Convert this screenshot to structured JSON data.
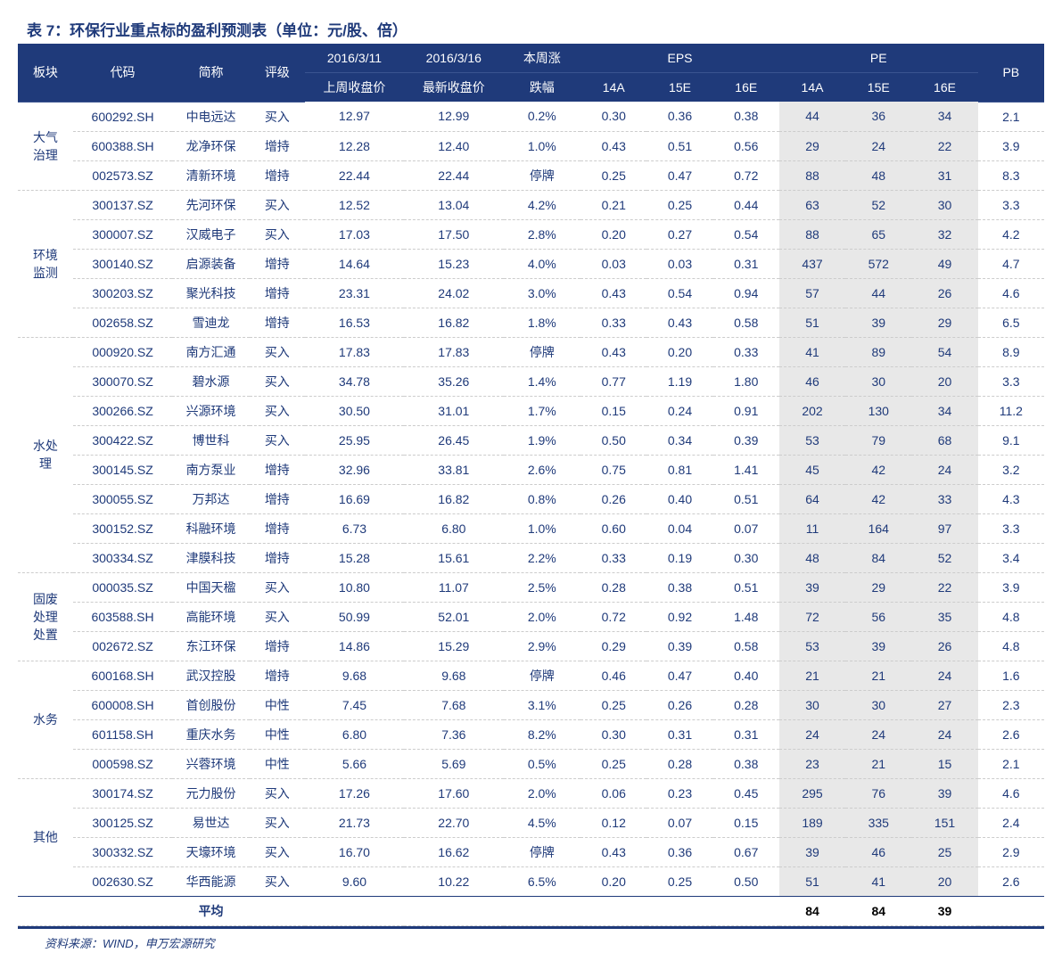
{
  "title": "表 7：环保行业重点标的盈利预测表（单位：元/股、倍）",
  "source": "资料来源：WIND，申万宏源研究",
  "colors": {
    "primary": "#1f3a7a",
    "header_bg": "#1f3a7a",
    "header_text": "#ffffff",
    "pe_bg": "#e8e8e8",
    "body_text": "#1f3a7a",
    "row_divider": "#cccccc"
  },
  "header": {
    "section": "板块",
    "code": "代码",
    "name": "简称",
    "rating": "评级",
    "date1": "2016/3/11",
    "date2": "2016/3/16",
    "change_label1": "本周涨",
    "eps": "EPS",
    "pe": "PE",
    "pb": "PB",
    "prev_close": "上周收盘价",
    "latest_close": "最新收盘价",
    "change_label2": "跌幅",
    "y14a": "14A",
    "y15e": "15E",
    "y16e": "16E"
  },
  "sections": [
    {
      "label": "大气治理",
      "rows": [
        {
          "code": "600292.SH",
          "name": "中电远达",
          "rating": "买入",
          "prev": "12.97",
          "latest": "12.99",
          "chg": "0.2%",
          "eps14": "0.30",
          "eps15": "0.36",
          "eps16": "0.38",
          "pe14": "44",
          "pe15": "36",
          "pe16": "34",
          "pb": "2.1"
        },
        {
          "code": "600388.SH",
          "name": "龙净环保",
          "rating": "增持",
          "prev": "12.28",
          "latest": "12.40",
          "chg": "1.0%",
          "eps14": "0.43",
          "eps15": "0.51",
          "eps16": "0.56",
          "pe14": "29",
          "pe15": "24",
          "pe16": "22",
          "pb": "3.9"
        },
        {
          "code": "002573.SZ",
          "name": "清新环境",
          "rating": "增持",
          "prev": "22.44",
          "latest": "22.44",
          "chg": "停牌",
          "eps14": "0.25",
          "eps15": "0.47",
          "eps16": "0.72",
          "pe14": "88",
          "pe15": "48",
          "pe16": "31",
          "pb": "8.3"
        }
      ]
    },
    {
      "label": "环境监测",
      "rows": [
        {
          "code": "300137.SZ",
          "name": "先河环保",
          "rating": "买入",
          "prev": "12.52",
          "latest": "13.04",
          "chg": "4.2%",
          "eps14": "0.21",
          "eps15": "0.25",
          "eps16": "0.44",
          "pe14": "63",
          "pe15": "52",
          "pe16": "30",
          "pb": "3.3"
        },
        {
          "code": "300007.SZ",
          "name": "汉威电子",
          "rating": "买入",
          "prev": "17.03",
          "latest": "17.50",
          "chg": "2.8%",
          "eps14": "0.20",
          "eps15": "0.27",
          "eps16": "0.54",
          "pe14": "88",
          "pe15": "65",
          "pe16": "32",
          "pb": "4.2"
        },
        {
          "code": "300140.SZ",
          "name": "启源装备",
          "rating": "增持",
          "prev": "14.64",
          "latest": "15.23",
          "chg": "4.0%",
          "eps14": "0.03",
          "eps15": "0.03",
          "eps16": "0.31",
          "pe14": "437",
          "pe15": "572",
          "pe16": "49",
          "pb": "4.7"
        },
        {
          "code": "300203.SZ",
          "name": "聚光科技",
          "rating": "增持",
          "prev": "23.31",
          "latest": "24.02",
          "chg": "3.0%",
          "eps14": "0.43",
          "eps15": "0.54",
          "eps16": "0.94",
          "pe14": "57",
          "pe15": "44",
          "pe16": "26",
          "pb": "4.6"
        },
        {
          "code": "002658.SZ",
          "name": "雪迪龙",
          "rating": "增持",
          "prev": "16.53",
          "latest": "16.82",
          "chg": "1.8%",
          "eps14": "0.33",
          "eps15": "0.43",
          "eps16": "0.58",
          "pe14": "51",
          "pe15": "39",
          "pe16": "29",
          "pb": "6.5"
        }
      ]
    },
    {
      "label": "水处理",
      "rows": [
        {
          "code": "000920.SZ",
          "name": "南方汇通",
          "rating": "买入",
          "prev": "17.83",
          "latest": "17.83",
          "chg": "停牌",
          "eps14": "0.43",
          "eps15": "0.20",
          "eps16": "0.33",
          "pe14": "41",
          "pe15": "89",
          "pe16": "54",
          "pb": "8.9"
        },
        {
          "code": "300070.SZ",
          "name": "碧水源",
          "rating": "买入",
          "prev": "34.78",
          "latest": "35.26",
          "chg": "1.4%",
          "eps14": "0.77",
          "eps15": "1.19",
          "eps16": "1.80",
          "pe14": "46",
          "pe15": "30",
          "pe16": "20",
          "pb": "3.3"
        },
        {
          "code": "300266.SZ",
          "name": "兴源环境",
          "rating": "买入",
          "prev": "30.50",
          "latest": "31.01",
          "chg": "1.7%",
          "eps14": "0.15",
          "eps15": "0.24",
          "eps16": "0.91",
          "pe14": "202",
          "pe15": "130",
          "pe16": "34",
          "pb": "11.2"
        },
        {
          "code": "300422.SZ",
          "name": "博世科",
          "rating": "买入",
          "prev": "25.95",
          "latest": "26.45",
          "chg": "1.9%",
          "eps14": "0.50",
          "eps15": "0.34",
          "eps16": "0.39",
          "pe14": "53",
          "pe15": "79",
          "pe16": "68",
          "pb": "9.1"
        },
        {
          "code": "300145.SZ",
          "name": "南方泵业",
          "rating": "增持",
          "prev": "32.96",
          "latest": "33.81",
          "chg": "2.6%",
          "eps14": "0.75",
          "eps15": "0.81",
          "eps16": "1.41",
          "pe14": "45",
          "pe15": "42",
          "pe16": "24",
          "pb": "3.2"
        },
        {
          "code": "300055.SZ",
          "name": "万邦达",
          "rating": "增持",
          "prev": "16.69",
          "latest": "16.82",
          "chg": "0.8%",
          "eps14": "0.26",
          "eps15": "0.40",
          "eps16": "0.51",
          "pe14": "64",
          "pe15": "42",
          "pe16": "33",
          "pb": "4.3"
        },
        {
          "code": "300152.SZ",
          "name": "科融环境",
          "rating": "增持",
          "prev": "6.73",
          "latest": "6.80",
          "chg": "1.0%",
          "eps14": "0.60",
          "eps15": "0.04",
          "eps16": "0.07",
          "pe14": "11",
          "pe15": "164",
          "pe16": "97",
          "pb": "3.3"
        },
        {
          "code": "300334.SZ",
          "name": "津膜科技",
          "rating": "增持",
          "prev": "15.28",
          "latest": "15.61",
          "chg": "2.2%",
          "eps14": "0.33",
          "eps15": "0.19",
          "eps16": "0.30",
          "pe14": "48",
          "pe15": "84",
          "pe16": "52",
          "pb": "3.4"
        }
      ]
    },
    {
      "label": "固废处理处置",
      "rows": [
        {
          "code": "000035.SZ",
          "name": "中国天楹",
          "rating": "买入",
          "prev": "10.80",
          "latest": "11.07",
          "chg": "2.5%",
          "eps14": "0.28",
          "eps15": "0.38",
          "eps16": "0.51",
          "pe14": "39",
          "pe15": "29",
          "pe16": "22",
          "pb": "3.9"
        },
        {
          "code": "603588.SH",
          "name": "高能环境",
          "rating": "买入",
          "prev": "50.99",
          "latest": "52.01",
          "chg": "2.0%",
          "eps14": "0.72",
          "eps15": "0.92",
          "eps16": "1.48",
          "pe14": "72",
          "pe15": "56",
          "pe16": "35",
          "pb": "4.8"
        },
        {
          "code": "002672.SZ",
          "name": "东江环保",
          "rating": "增持",
          "prev": "14.86",
          "latest": "15.29",
          "chg": "2.9%",
          "eps14": "0.29",
          "eps15": "0.39",
          "eps16": "0.58",
          "pe14": "53",
          "pe15": "39",
          "pe16": "26",
          "pb": "4.8"
        }
      ]
    },
    {
      "label": "水务",
      "rows": [
        {
          "code": "600168.SH",
          "name": "武汉控股",
          "rating": "增持",
          "prev": "9.68",
          "latest": "9.68",
          "chg": "停牌",
          "eps14": "0.46",
          "eps15": "0.47",
          "eps16": "0.40",
          "pe14": "21",
          "pe15": "21",
          "pe16": "24",
          "pb": "1.6"
        },
        {
          "code": "600008.SH",
          "name": "首创股份",
          "rating": "中性",
          "prev": "7.45",
          "latest": "7.68",
          "chg": "3.1%",
          "eps14": "0.25",
          "eps15": "0.26",
          "eps16": "0.28",
          "pe14": "30",
          "pe15": "30",
          "pe16": "27",
          "pb": "2.3"
        },
        {
          "code": "601158.SH",
          "name": "重庆水务",
          "rating": "中性",
          "prev": "6.80",
          "latest": "7.36",
          "chg": "8.2%",
          "eps14": "0.30",
          "eps15": "0.31",
          "eps16": "0.31",
          "pe14": "24",
          "pe15": "24",
          "pe16": "24",
          "pb": "2.6"
        },
        {
          "code": "000598.SZ",
          "name": "兴蓉环境",
          "rating": "中性",
          "prev": "5.66",
          "latest": "5.69",
          "chg": "0.5%",
          "eps14": "0.25",
          "eps15": "0.28",
          "eps16": "0.38",
          "pe14": "23",
          "pe15": "21",
          "pe16": "15",
          "pb": "2.1"
        }
      ]
    },
    {
      "label": "其他",
      "rows": [
        {
          "code": "300174.SZ",
          "name": "元力股份",
          "rating": "买入",
          "prev": "17.26",
          "latest": "17.60",
          "chg": "2.0%",
          "eps14": "0.06",
          "eps15": "0.23",
          "eps16": "0.45",
          "pe14": "295",
          "pe15": "76",
          "pe16": "39",
          "pb": "4.6"
        },
        {
          "code": "300125.SZ",
          "name": "易世达",
          "rating": "买入",
          "prev": "21.73",
          "latest": "22.70",
          "chg": "4.5%",
          "eps14": "0.12",
          "eps15": "0.07",
          "eps16": "0.15",
          "pe14": "189",
          "pe15": "335",
          "pe16": "151",
          "pb": "2.4"
        },
        {
          "code": "300332.SZ",
          "name": "天壕环境",
          "rating": "买入",
          "prev": "16.70",
          "latest": "16.62",
          "chg": "停牌",
          "eps14": "0.43",
          "eps15": "0.36",
          "eps16": "0.67",
          "pe14": "39",
          "pe15": "46",
          "pe16": "25",
          "pb": "2.9"
        },
        {
          "code": "002630.SZ",
          "name": "华西能源",
          "rating": "买入",
          "prev": "9.60",
          "latest": "10.22",
          "chg": "6.5%",
          "eps14": "0.20",
          "eps15": "0.25",
          "eps16": "0.50",
          "pe14": "51",
          "pe15": "41",
          "pe16": "20",
          "pb": "2.6",
          "highlight_eps": true
        }
      ]
    }
  ],
  "avg": {
    "label": "平均",
    "pe14": "84",
    "pe15": "84",
    "pe16": "39"
  }
}
